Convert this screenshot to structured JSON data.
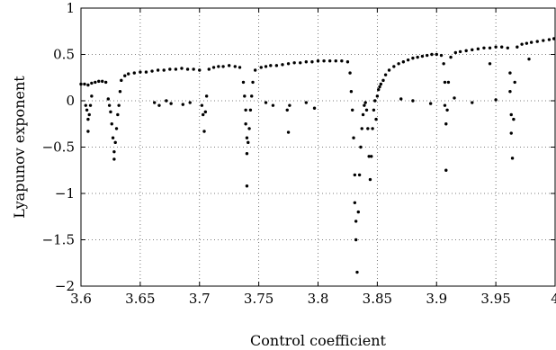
{
  "chart_data": {
    "type": "scatter",
    "title": "",
    "xlabel": "Control coefficient",
    "ylabel": "Lyapunov exponent",
    "xlim": [
      3.6,
      4.0
    ],
    "ylim": [
      -2,
      1
    ],
    "grid": true,
    "legend": "none",
    "x_ticks": [
      "3.6",
      "3.65",
      "3.7",
      "3.75",
      "3.8",
      "3.85",
      "3.9",
      "3.95",
      "4"
    ],
    "y_ticks": [
      "1",
      "0.5",
      "0",
      "−0.5",
      "−1",
      "−1.5",
      "−2"
    ],
    "series": [
      {
        "color": "#000000",
        "points": [
          [
            3.6,
            0.18
          ],
          [
            3.603,
            0.18
          ],
          [
            3.606,
            0.17
          ],
          [
            3.609,
            0.19
          ],
          [
            3.612,
            0.2
          ],
          [
            3.615,
            0.21
          ],
          [
            3.618,
            0.21
          ],
          [
            3.621,
            0.2
          ],
          [
            3.604,
            -0.05
          ],
          [
            3.605,
            -0.1
          ],
          [
            3.606,
            -0.2
          ],
          [
            3.606,
            -0.33
          ],
          [
            3.607,
            -0.15
          ],
          [
            3.608,
            -0.05
          ],
          [
            3.609,
            0.05
          ],
          [
            3.623,
            0.02
          ],
          [
            3.624,
            -0.05
          ],
          [
            3.625,
            -0.12
          ],
          [
            3.626,
            -0.25
          ],
          [
            3.627,
            -0.4
          ],
          [
            3.628,
            -0.55
          ],
          [
            3.628,
            -0.63
          ],
          [
            3.629,
            -0.45
          ],
          [
            3.63,
            -0.3
          ],
          [
            3.631,
            -0.15
          ],
          [
            3.632,
            -0.05
          ],
          [
            3.633,
            0.1
          ],
          [
            3.634,
            0.22
          ],
          [
            3.637,
            0.27
          ],
          [
            3.64,
            0.29
          ],
          [
            3.645,
            0.3
          ],
          [
            3.65,
            0.31
          ],
          [
            3.655,
            0.31
          ],
          [
            3.66,
            0.32
          ],
          [
            3.665,
            0.33
          ],
          [
            3.67,
            0.33
          ],
          [
            3.675,
            0.34
          ],
          [
            3.68,
            0.34
          ],
          [
            3.685,
            0.35
          ],
          [
            3.69,
            0.34
          ],
          [
            3.695,
            0.34
          ],
          [
            3.7,
            0.33
          ],
          [
            3.662,
            -0.02
          ],
          [
            3.666,
            -0.05
          ],
          [
            3.672,
            0.0
          ],
          [
            3.676,
            -0.03
          ],
          [
            3.686,
            -0.04
          ],
          [
            3.692,
            -0.02
          ],
          [
            3.702,
            -0.05
          ],
          [
            3.703,
            -0.15
          ],
          [
            3.704,
            -0.33
          ],
          [
            3.705,
            -0.12
          ],
          [
            3.706,
            0.05
          ],
          [
            3.708,
            0.34
          ],
          [
            3.712,
            0.36
          ],
          [
            3.716,
            0.37
          ],
          [
            3.72,
            0.37
          ],
          [
            3.725,
            0.38
          ],
          [
            3.73,
            0.37
          ],
          [
            3.734,
            0.36
          ],
          [
            3.737,
            0.2
          ],
          [
            3.738,
            0.05
          ],
          [
            3.739,
            -0.1
          ],
          [
            3.739,
            -0.25
          ],
          [
            3.74,
            -0.4
          ],
          [
            3.74,
            -0.57
          ],
          [
            3.741,
            -0.45
          ],
          [
            3.742,
            -0.3
          ],
          [
            3.743,
            -0.1
          ],
          [
            3.744,
            0.05
          ],
          [
            3.745,
            0.2
          ],
          [
            3.74,
            -0.92
          ],
          [
            3.747,
            0.33
          ],
          [
            3.752,
            0.36
          ],
          [
            3.756,
            0.37
          ],
          [
            3.76,
            0.38
          ],
          [
            3.765,
            0.38
          ],
          [
            3.77,
            0.39
          ],
          [
            3.775,
            0.4
          ],
          [
            3.78,
            0.41
          ],
          [
            3.785,
            0.41
          ],
          [
            3.79,
            0.42
          ],
          [
            3.795,
            0.42
          ],
          [
            3.8,
            0.43
          ],
          [
            3.805,
            0.43
          ],
          [
            3.81,
            0.43
          ],
          [
            3.815,
            0.43
          ],
          [
            3.82,
            0.43
          ],
          [
            3.825,
            0.42
          ],
          [
            3.756,
            -0.02
          ],
          [
            3.762,
            -0.05
          ],
          [
            3.774,
            -0.1
          ],
          [
            3.775,
            -0.34
          ],
          [
            3.776,
            -0.05
          ],
          [
            3.79,
            -0.02
          ],
          [
            3.797,
            -0.08
          ],
          [
            3.827,
            0.3
          ],
          [
            3.828,
            0.1
          ],
          [
            3.829,
            -0.1
          ],
          [
            3.83,
            -0.4
          ],
          [
            3.831,
            -0.8
          ],
          [
            3.831,
            -1.1
          ],
          [
            3.832,
            -1.3
          ],
          [
            3.832,
            -1.5
          ],
          [
            3.833,
            -1.85
          ],
          [
            3.834,
            -1.2
          ],
          [
            3.835,
            -0.8
          ],
          [
            3.836,
            -0.5
          ],
          [
            3.837,
            -0.3
          ],
          [
            3.838,
            -0.15
          ],
          [
            3.839,
            -0.05
          ],
          [
            3.84,
            -0.02
          ],
          [
            3.841,
            -0.1
          ],
          [
            3.842,
            -0.3
          ],
          [
            3.843,
            -0.6
          ],
          [
            3.844,
            -0.85
          ],
          [
            3.845,
            -0.6
          ],
          [
            3.846,
            -0.3
          ],
          [
            3.847,
            -0.1
          ],
          [
            3.848,
            0.0
          ],
          [
            3.849,
            -0.2
          ],
          [
            3.85,
            0.05
          ],
          [
            3.851,
            0.12
          ],
          [
            3.852,
            0.15
          ],
          [
            3.853,
            0.18
          ],
          [
            3.855,
            0.22
          ],
          [
            3.857,
            0.28
          ],
          [
            3.86,
            0.33
          ],
          [
            3.864,
            0.37
          ],
          [
            3.868,
            0.4
          ],
          [
            3.872,
            0.42
          ],
          [
            3.876,
            0.44
          ],
          [
            3.88,
            0.46
          ],
          [
            3.884,
            0.47
          ],
          [
            3.888,
            0.48
          ],
          [
            3.892,
            0.49
          ],
          [
            3.896,
            0.5
          ],
          [
            3.9,
            0.5
          ],
          [
            3.904,
            0.49
          ],
          [
            3.906,
            0.4
          ],
          [
            3.907,
            0.2
          ],
          [
            3.907,
            -0.05
          ],
          [
            3.908,
            -0.25
          ],
          [
            3.908,
            -0.75
          ],
          [
            3.909,
            -0.1
          ],
          [
            3.91,
            0.2
          ],
          [
            3.912,
            0.47
          ],
          [
            3.916,
            0.52
          ],
          [
            3.92,
            0.53
          ],
          [
            3.925,
            0.54
          ],
          [
            3.93,
            0.55
          ],
          [
            3.935,
            0.56
          ],
          [
            3.94,
            0.57
          ],
          [
            3.945,
            0.57
          ],
          [
            3.95,
            0.58
          ],
          [
            3.955,
            0.58
          ],
          [
            3.96,
            0.57
          ],
          [
            3.962,
            0.3
          ],
          [
            3.962,
            0.1
          ],
          [
            3.963,
            -0.15
          ],
          [
            3.963,
            -0.35
          ],
          [
            3.964,
            -0.62
          ],
          [
            3.965,
            -0.2
          ],
          [
            3.966,
            0.2
          ],
          [
            3.968,
            0.58
          ],
          [
            3.972,
            0.61
          ],
          [
            3.976,
            0.62
          ],
          [
            3.98,
            0.63
          ],
          [
            3.985,
            0.64
          ],
          [
            3.99,
            0.65
          ],
          [
            3.995,
            0.66
          ],
          [
            3.999,
            0.67
          ],
          [
            3.87,
            0.02
          ],
          [
            3.88,
            0.0
          ],
          [
            3.895,
            -0.03
          ],
          [
            3.915,
            0.03
          ],
          [
            3.93,
            -0.02
          ],
          [
            3.945,
            0.4
          ],
          [
            3.95,
            0.01
          ],
          [
            3.978,
            0.45
          ]
        ]
      }
    ]
  }
}
